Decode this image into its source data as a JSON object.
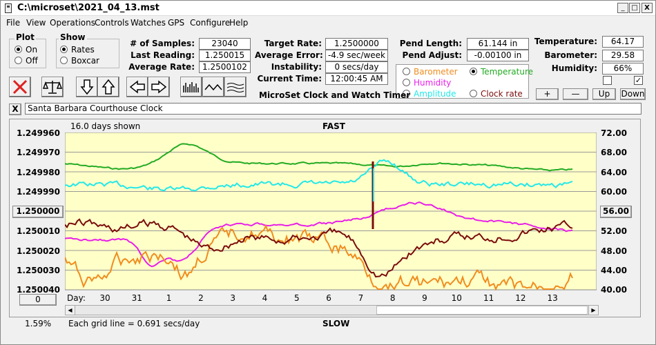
{
  "window": {
    "title": "C:\\microset\\2021_04_13.mst",
    "minimize": "_",
    "maximize": "□",
    "close": "X"
  },
  "menu": [
    "File",
    "View",
    "Operations",
    "Controls",
    "Watches",
    "GPS",
    "Configure",
    "Help"
  ],
  "plot_group": {
    "title": "Plot",
    "on": "On",
    "off": "Off",
    "selected": "On"
  },
  "show_group": {
    "title": "Show",
    "rates": "Rates",
    "boxcar": "Boxcar",
    "selected": "Rates"
  },
  "stats": {
    "samples_label": "# of Samples:",
    "samples": "23040",
    "last_label": "Last Reading:",
    "last": "1.250015",
    "avg_label": "Average Rate:",
    "avg": "1.2500102",
    "target_label": "Target Rate:",
    "target": "1.2500000",
    "avgerr_label": "Average Error:",
    "avgerr": "-4.9 sec/week",
    "instab_label": "Instability:",
    "instab": "0 secs/day",
    "time_label": "Current Time:",
    "time": "12:00:45 AM",
    "pendlen_label": "Pend Length:",
    "pendlen": "61.144 in",
    "pendadj_label": "Pend Adjust:",
    "pendadj": "-0.00100 in",
    "temp_label": "Temperature:",
    "temp": "64.17",
    "baro_label": "Barometer:",
    "baro": "29.58",
    "hum_label": "Humidity:",
    "hum": "66%"
  },
  "app_name": "MicroSet Clock and Watch Timer",
  "sensor_options": {
    "barometer": "Barometer",
    "temperature": "Temperature",
    "humidity": "Humidity",
    "amplitude": "Amplitude",
    "clockrate": "Clock rate",
    "selected": "Temperature"
  },
  "sensor_buttons": {
    "plus": "+",
    "minus": "—",
    "up": "Up",
    "down": "Down"
  },
  "clock_name": "Santa Barbara Courthouse Clock",
  "close_x": "X",
  "plot": {
    "days_shown": "16.0 days shown",
    "fast": "FAST",
    "slow": "SLOW",
    "left_ticks": [
      "1.249960",
      "1.249970",
      "1.249980",
      "1.249990",
      "1.250000",
      "1.250010",
      "1.250020",
      "1.250030",
      "1.250040"
    ],
    "right_ticks": [
      "72.00",
      "68.00",
      "64.00",
      "60.00",
      "56.00",
      "52.00",
      "48.00",
      "44.00",
      "40.00"
    ],
    "left_center": "1.250000",
    "right_center": "56.00",
    "day_label": "Day:",
    "days": [
      "30",
      "31",
      "1",
      "2",
      "3",
      "4",
      "5",
      "6",
      "7",
      "8",
      "9",
      "10",
      "11",
      "12",
      "13"
    ],
    "zoom_value": "0",
    "percent": "1.59%",
    "grid_note": "Each grid line = 0.691 secs/day"
  },
  "colors": {
    "plot_bg": "#ffffc8",
    "rate": "#7a0c0c",
    "temperature": "#22aa22",
    "humidity": "#e81ee8",
    "amplitude": "#22e8e8",
    "barometer": "#f08c1e",
    "clockrate": "#7a0c0c",
    "x_icon": "#e02020"
  }
}
